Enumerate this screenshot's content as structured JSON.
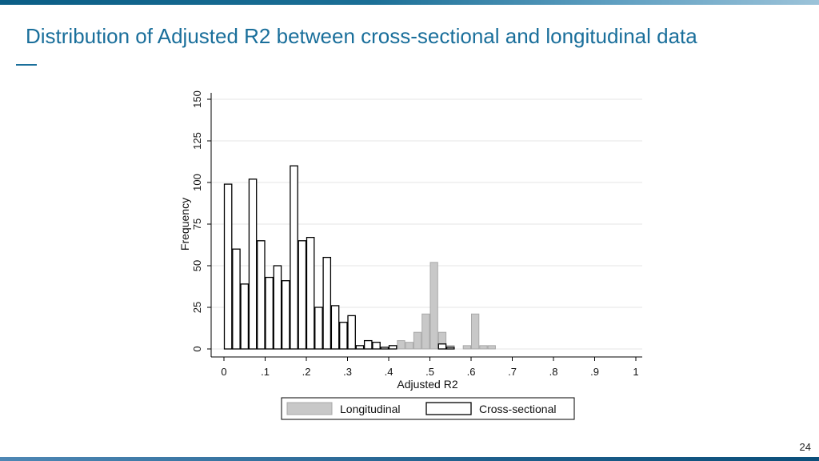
{
  "slide": {
    "title": "Distribution of Adjusted R2 between cross-sectional and longitudinal data",
    "page_number": "24"
  },
  "colors": {
    "title": "#1a6f9b",
    "longitudinal_fill": "#c8c8c8",
    "longitudinal_stroke": "#a8a8a8",
    "cross_sectional_fill": "#ffffff",
    "cross_sectional_stroke": "#000000"
  },
  "chart_data": {
    "type": "bar",
    "xlabel": "Adjusted R2",
    "ylabel": "Frequency",
    "xlim": [
      0,
      1
    ],
    "ylim": [
      0,
      150
    ],
    "x_ticks": [
      "0",
      ".1",
      ".2",
      ".3",
      ".4",
      ".5",
      ".6",
      ".7",
      ".8",
      ".9",
      "1"
    ],
    "y_ticks": [
      "0",
      "25",
      "50",
      "75",
      "100",
      "125",
      "150"
    ],
    "grid": true,
    "legend_position": "bottom",
    "bin_width": 0.02,
    "series": [
      {
        "name": "Longitudinal",
        "bins": [
          {
            "x": 0.42,
            "y": 5
          },
          {
            "x": 0.44,
            "y": 4
          },
          {
            "x": 0.46,
            "y": 10
          },
          {
            "x": 0.48,
            "y": 21
          },
          {
            "x": 0.5,
            "y": 52
          },
          {
            "x": 0.52,
            "y": 10
          },
          {
            "x": 0.54,
            "y": 2
          },
          {
            "x": 0.58,
            "y": 2
          },
          {
            "x": 0.6,
            "y": 21
          },
          {
            "x": 0.62,
            "y": 2
          },
          {
            "x": 0.64,
            "y": 2
          }
        ]
      },
      {
        "name": "Cross-sectional",
        "bins": [
          {
            "x": 0.0,
            "y": 99
          },
          {
            "x": 0.02,
            "y": 60
          },
          {
            "x": 0.04,
            "y": 39
          },
          {
            "x": 0.06,
            "y": 102
          },
          {
            "x": 0.08,
            "y": 65
          },
          {
            "x": 0.1,
            "y": 43
          },
          {
            "x": 0.12,
            "y": 50
          },
          {
            "x": 0.14,
            "y": 41
          },
          {
            "x": 0.16,
            "y": 110
          },
          {
            "x": 0.18,
            "y": 65
          },
          {
            "x": 0.2,
            "y": 67
          },
          {
            "x": 0.22,
            "y": 25
          },
          {
            "x": 0.24,
            "y": 55
          },
          {
            "x": 0.26,
            "y": 26
          },
          {
            "x": 0.28,
            "y": 16
          },
          {
            "x": 0.3,
            "y": 20
          },
          {
            "x": 0.32,
            "y": 2
          },
          {
            "x": 0.34,
            "y": 5
          },
          {
            "x": 0.36,
            "y": 4
          },
          {
            "x": 0.38,
            "y": 1
          },
          {
            "x": 0.4,
            "y": 2
          },
          {
            "x": 0.52,
            "y": 3
          },
          {
            "x": 0.54,
            "y": 1
          }
        ]
      }
    ]
  }
}
